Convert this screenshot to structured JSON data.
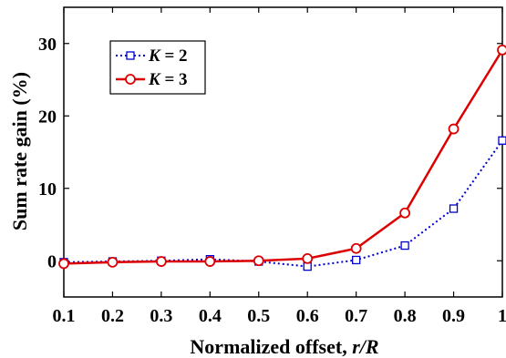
{
  "chart_data": {
    "type": "line",
    "x": [
      0.1,
      0.2,
      0.3,
      0.4,
      0.5,
      0.6,
      0.7,
      0.8,
      0.9,
      1.0
    ],
    "series": [
      {
        "name": "K = 2",
        "name_italic": "K",
        "name_rest": " = 2",
        "values": [
          -0.2,
          -0.1,
          0.0,
          0.2,
          -0.1,
          -0.8,
          0.1,
          2.1,
          7.2,
          16.6
        ],
        "color": "#0000CC",
        "line_style": "dotted",
        "marker": "square"
      },
      {
        "name": "K = 3",
        "name_italic": "K",
        "name_rest": " = 3",
        "values": [
          -0.4,
          -0.2,
          -0.1,
          -0.1,
          0.0,
          0.3,
          1.7,
          6.6,
          18.2,
          29.1
        ],
        "color": "#DD0000",
        "line_style": "solid",
        "marker": "circle"
      }
    ],
    "x_ticks": [
      "0.1",
      "0.2",
      "0.3",
      "0.4",
      "0.5",
      "0.6",
      "0.7",
      "0.8",
      "0.9",
      "1"
    ],
    "y_ticks": [
      "0",
      "10",
      "20",
      "30"
    ],
    "y_tick_values": [
      0,
      10,
      20,
      30
    ],
    "xlabel_main": "Normalized offset, ",
    "xlabel_italic": "r/R",
    "ylabel": "Sum rate gain (%)",
    "xlim": [
      0.1,
      1.0
    ],
    "ylim": [
      -5,
      35
    ],
    "grid": false,
    "legend_position": "top-left"
  }
}
